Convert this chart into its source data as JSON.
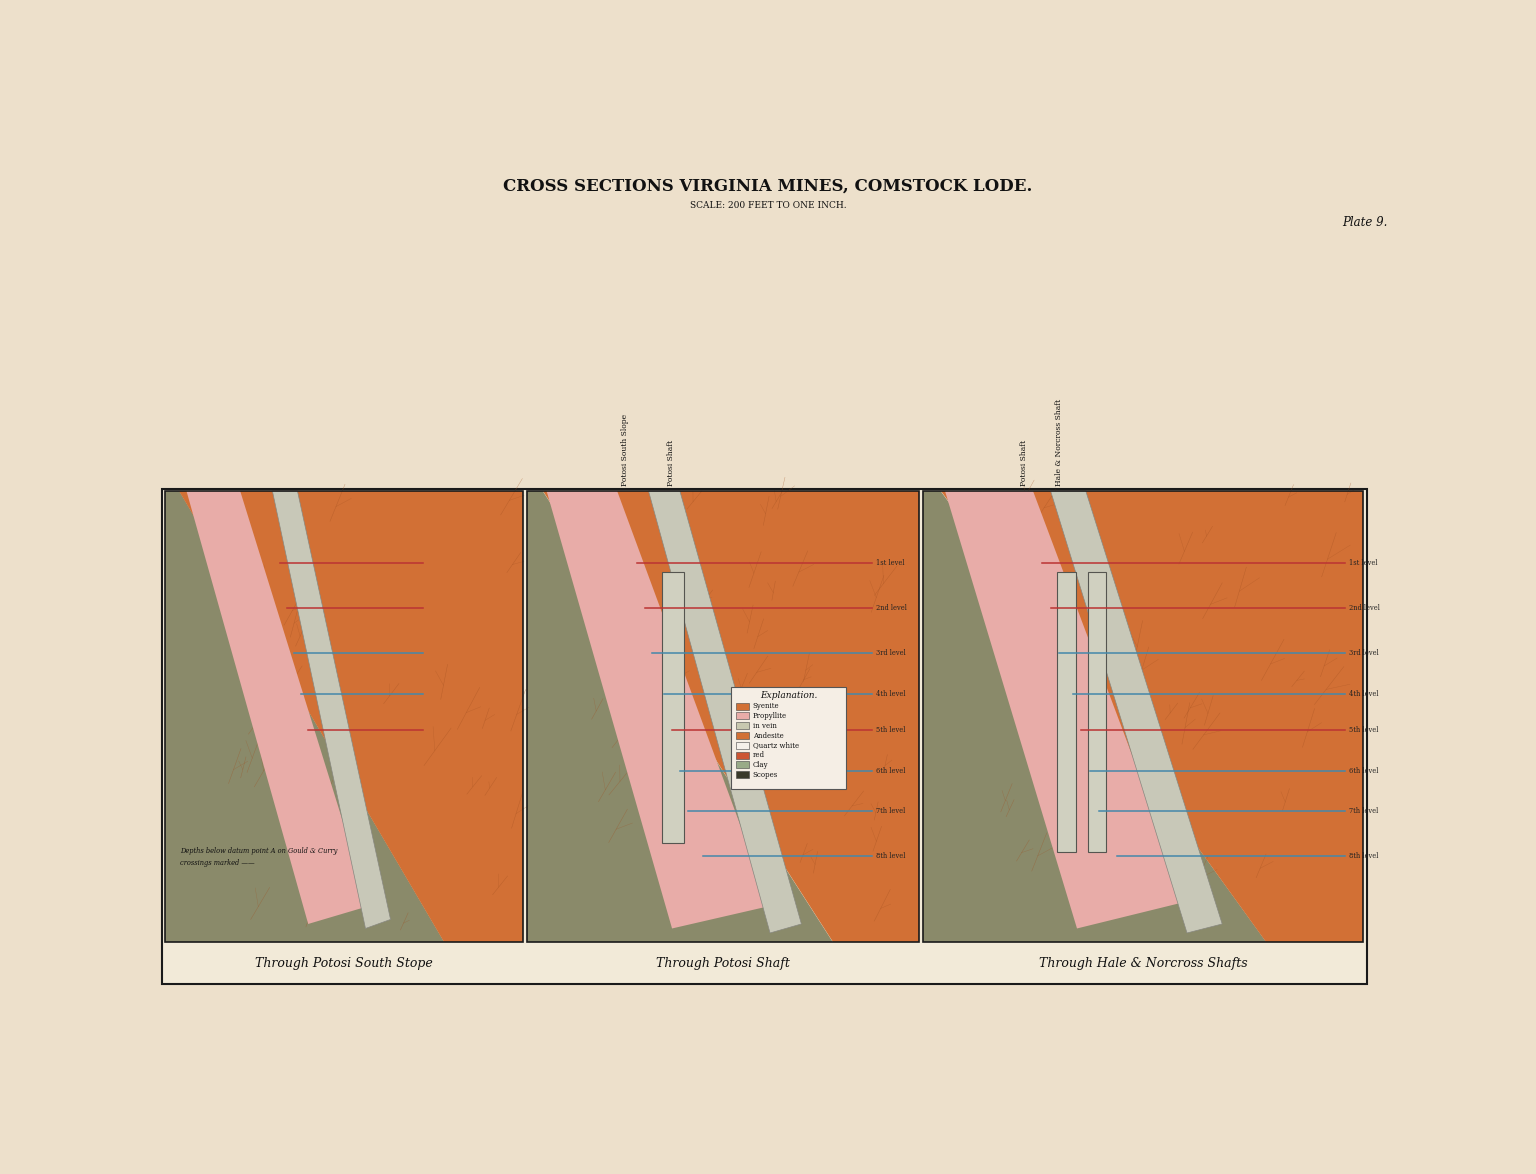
{
  "bg": "#EDE0CB",
  "panel_bg": "#F2EAD8",
  "border": "#1a1a1a",
  "title": "CROSS SECTIONS VIRGINIA MINES, COMSTOCK LODE.",
  "subtitle": "SCALE: 200 FEET TO ONE INCH.",
  "plate": "Plate 9.",
  "lbl1": "Through Potosi South Stope",
  "lbl2": "Through Potosi Shaft",
  "lbl3": "Through Hale & Norcross Shafts",
  "orange": "#D27035",
  "pink": "#E8ACA8",
  "gray_green": "#8A8A6A",
  "dark_gray": "#3A3A2A",
  "shaft_gray": "#AAAAAA",
  "blue": "#4488AA",
  "red": "#BB3333",
  "cream": "#F0E8DC",
  "levels": [
    [
      0.84,
      "#BB3333",
      "1st level"
    ],
    [
      0.74,
      "#BB3333",
      "2nd level"
    ],
    [
      0.64,
      "#4488AA",
      "3rd level"
    ],
    [
      0.55,
      "#4488AA",
      "4th level"
    ],
    [
      0.47,
      "#BB3333",
      "5th level"
    ],
    [
      0.38,
      "#4488AA",
      "6th level"
    ],
    [
      0.29,
      "#4488AA",
      "7th level"
    ],
    [
      0.19,
      "#4488AA",
      "8th level"
    ]
  ],
  "legend_entries": [
    [
      "Syenite",
      "#D27035"
    ],
    [
      "Propyllite",
      "#E8ACA8"
    ],
    [
      "in vein",
      "#C8C8B0"
    ],
    [
      "Andesite",
      "#D27035"
    ],
    [
      "Quartz white",
      "#F5F0EA"
    ],
    [
      "red",
      "#CC5533"
    ],
    [
      "Clay",
      "#99AA88"
    ],
    [
      "Scopes",
      "#3A3A2A"
    ]
  ]
}
